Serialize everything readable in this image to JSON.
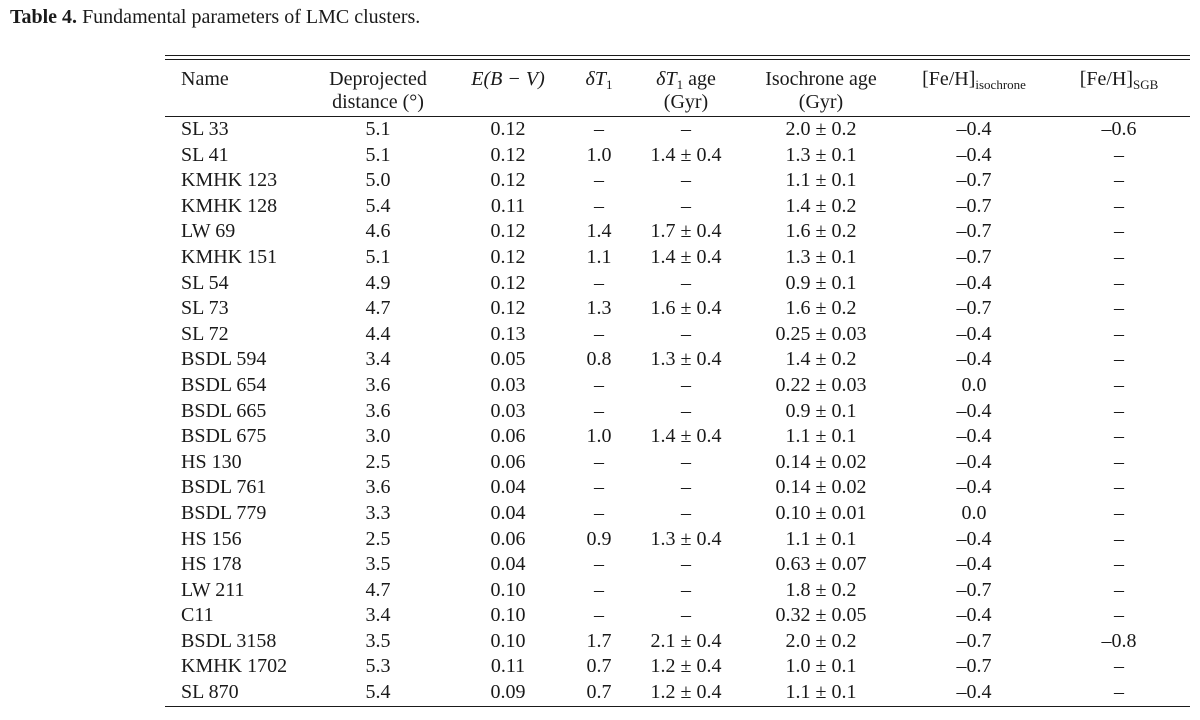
{
  "caption": {
    "label": "Table 4.",
    "text": "Fundamental parameters of LMC clusters."
  },
  "table": {
    "headers": [
      {
        "l1": "Name",
        "l2": ""
      },
      {
        "l1": "Deprojected",
        "l2": "distance (°)"
      },
      {
        "l1": "E(B − V)",
        "l2": ""
      },
      {
        "l1": "δT",
        "sub": "1",
        "l2": ""
      },
      {
        "l1": "δT",
        "sub": "1",
        "l1b": " age",
        "l2": "(Gyr)"
      },
      {
        "l1": "Isochrone age",
        "l2": "(Gyr)"
      },
      {
        "l1": "[Fe/H]",
        "sub": "isochrone",
        "l2": ""
      },
      {
        "l1": "[Fe/H]",
        "sub": "SGB",
        "l2": ""
      }
    ],
    "rows": [
      [
        "SL 33",
        "5.1",
        "0.12",
        "–",
        "–",
        "2.0 ± 0.2",
        "–0.4",
        "–0.6"
      ],
      [
        "SL 41",
        "5.1",
        "0.12",
        "1.0",
        "1.4 ± 0.4",
        "1.3 ± 0.1",
        "–0.4",
        "–"
      ],
      [
        "KMHK 123",
        "5.0",
        "0.12",
        "–",
        "–",
        "1.1 ± 0.1",
        "–0.7",
        "–"
      ],
      [
        "KMHK 128",
        "5.4",
        "0.11",
        "–",
        "–",
        "1.4 ± 0.2",
        "–0.7",
        "–"
      ],
      [
        "LW 69",
        "4.6",
        "0.12",
        "1.4",
        "1.7 ± 0.4",
        "1.6 ± 0.2",
        "–0.7",
        "–"
      ],
      [
        "KMHK 151",
        "5.1",
        "0.12",
        "1.1",
        "1.4 ± 0.4",
        "1.3 ± 0.1",
        "–0.7",
        "–"
      ],
      [
        "SL 54",
        "4.9",
        "0.12",
        "–",
        "–",
        "0.9 ± 0.1",
        "–0.4",
        "–"
      ],
      [
        "SL 73",
        "4.7",
        "0.12",
        "1.3",
        "1.6 ± 0.4",
        "1.6 ± 0.2",
        "–0.7",
        "–"
      ],
      [
        "SL 72",
        "4.4",
        "0.13",
        "–",
        "–",
        "0.25 ± 0.03",
        "–0.4",
        "–"
      ],
      [
        "BSDL 594",
        "3.4",
        "0.05",
        "0.8",
        "1.3 ± 0.4",
        "1.4 ± 0.2",
        "–0.4",
        "–"
      ],
      [
        "BSDL 654",
        "3.6",
        "0.03",
        "–",
        "–",
        "0.22 ± 0.03",
        "0.0",
        "–"
      ],
      [
        "BSDL 665",
        "3.6",
        "0.03",
        "–",
        "–",
        "0.9 ± 0.1",
        "–0.4",
        "–"
      ],
      [
        "BSDL 675",
        "3.0",
        "0.06",
        "1.0",
        "1.4 ± 0.4",
        "1.1 ± 0.1",
        "–0.4",
        "–"
      ],
      [
        "HS 130",
        "2.5",
        "0.06",
        "–",
        "–",
        "0.14 ± 0.02",
        "–0.4",
        "–"
      ],
      [
        "BSDL 761",
        "3.6",
        "0.04",
        "–",
        "–",
        "0.14 ± 0.02",
        "–0.4",
        "–"
      ],
      [
        "BSDL 779",
        "3.3",
        "0.04",
        "–",
        "–",
        "0.10 ± 0.01",
        "0.0",
        "–"
      ],
      [
        "HS 156",
        "2.5",
        "0.06",
        "0.9",
        "1.3 ± 0.4",
        "1.1 ± 0.1",
        "–0.4",
        "–"
      ],
      [
        "HS 178",
        "3.5",
        "0.04",
        "–",
        "–",
        "0.63 ± 0.07",
        "–0.4",
        "–"
      ],
      [
        "LW 211",
        "4.7",
        "0.10",
        "–",
        "–",
        "1.8 ± 0.2",
        "–0.7",
        "–"
      ],
      [
        "C11",
        "3.4",
        "0.10",
        "–",
        "–",
        "0.32 ± 0.05",
        "–0.4",
        "–"
      ],
      [
        "BSDL 3158",
        "3.5",
        "0.10",
        "1.7",
        "2.1 ± 0.4",
        "2.0 ± 0.2",
        "–0.7",
        "–0.8"
      ],
      [
        "KMHK 1702",
        "5.3",
        "0.11",
        "0.7",
        "1.2 ± 0.4",
        "1.0 ± 0.1",
        "–0.7",
        "–"
      ],
      [
        "SL 870",
        "5.4",
        "0.09",
        "0.7",
        "1.2 ± 0.4",
        "1.1 ± 0.1",
        "–0.4",
        "–"
      ]
    ]
  }
}
